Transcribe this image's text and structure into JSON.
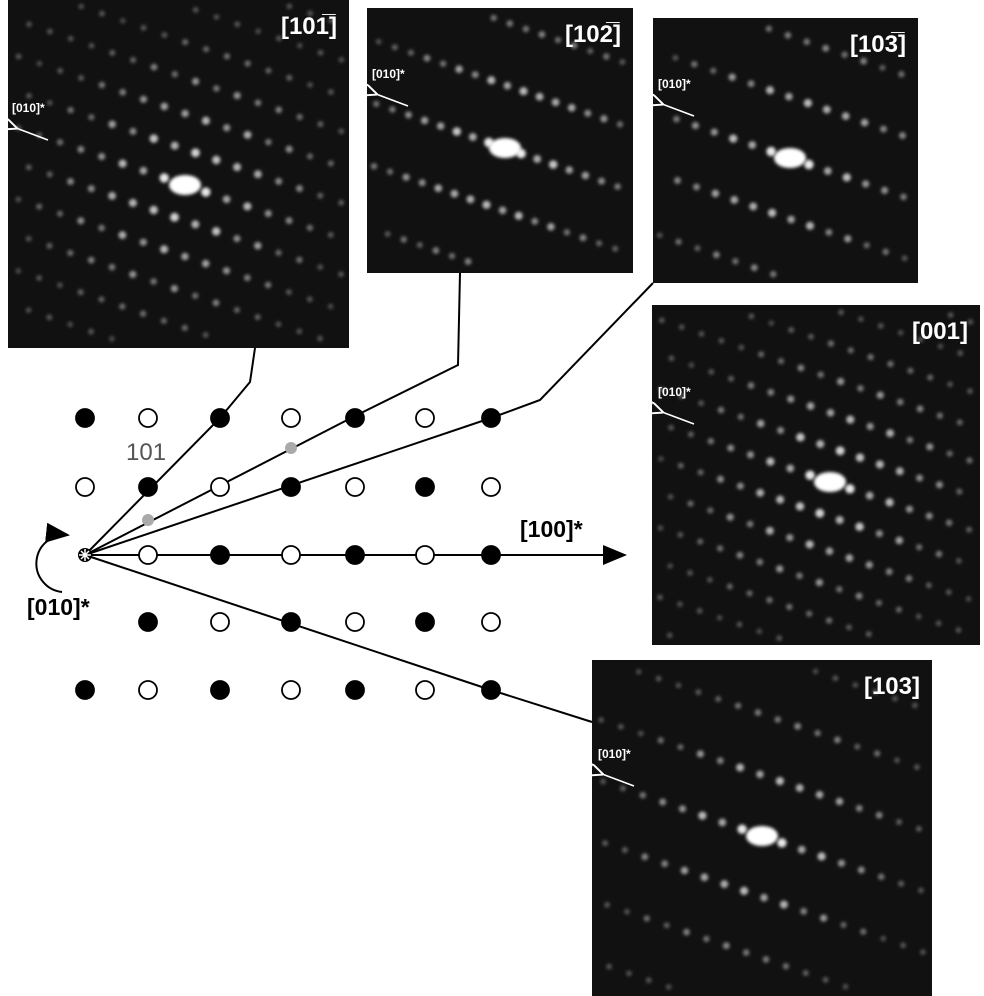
{
  "panels": [
    {
      "label": "[101̅]",
      "axis_label": "[010]*"
    },
    {
      "label": "[102̅]",
      "axis_label": "[010]*"
    },
    {
      "label": "[103̅]",
      "axis_label": "[010]*"
    },
    {
      "label": "[001]",
      "axis_label": "[010]*"
    },
    {
      "label": "[103]",
      "axis_label": "[010]*"
    }
  ],
  "lattice": {
    "point_label": "101",
    "x_axis_label": "[100]*",
    "rotation_label": "[010]*"
  }
}
